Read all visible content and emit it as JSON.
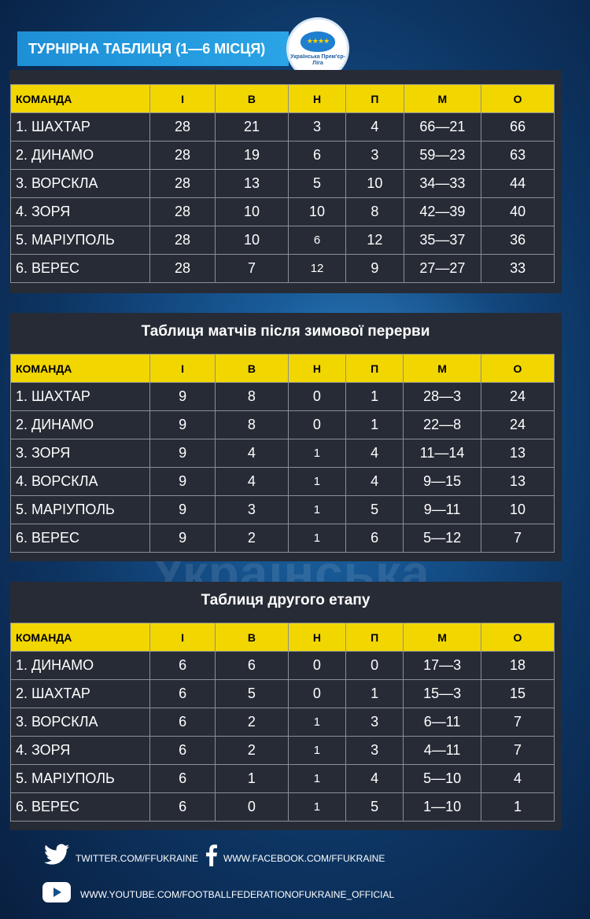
{
  "header": {
    "title": "ТУРНІРНА ТАБЛИЦЯ (1—6 МІСЦЯ)",
    "logo_text": "Українська Прем'єр-Ліга"
  },
  "background": {
    "watermark": "Українська Прем'єр-Ліга"
  },
  "columns": [
    "КОМАНДА",
    "І",
    "В",
    "Н",
    "П",
    "М",
    "О"
  ],
  "tables": [
    {
      "title": "",
      "rows": [
        {
          "team": "1.  ШАХТАР",
          "i": "28",
          "v": "21",
          "n": "3",
          "p": "4",
          "m": "66—21",
          "o": "66"
        },
        {
          "team": "2.  ДИНАМО",
          "i": "28",
          "v": "19",
          "n": "6",
          "p": "3",
          "m": "59—23",
          "o": "63"
        },
        {
          "team": "3.  ВОРСКЛА",
          "i": "28",
          "v": "13",
          "n": "5",
          "p": "10",
          "m": "34—33",
          "o": "44"
        },
        {
          "team": "4.  ЗОРЯ",
          "i": "28",
          "v": "10",
          "n": "10",
          "p": "8",
          "m": "42—39",
          "o": "40"
        },
        {
          "team": "5.  МАРІУПОЛЬ",
          "i": "28",
          "v": "10",
          "n": "6",
          "p": "12",
          "m": "35—37",
          "o": "36"
        },
        {
          "team": "6.  ВЕРЕС",
          "i": "28",
          "v": "7",
          "n": "12",
          "p": "9",
          "m": "27—27",
          "o": "33"
        }
      ]
    },
    {
      "title": "Таблиця матчів після зимової перерви",
      "rows": [
        {
          "team": "1.  ШАХТАР",
          "i": "9",
          "v": "8",
          "n": "0",
          "p": "1",
          "m": "28—3",
          "o": "24"
        },
        {
          "team": "2.  ДИНАМО",
          "i": "9",
          "v": "8",
          "n": "0",
          "p": "1",
          "m": "22—8",
          "o": "24"
        },
        {
          "team": "3.  ЗОРЯ",
          "i": "9",
          "v": "4",
          "n": "1",
          "p": "4",
          "m": "11—14",
          "o": "13"
        },
        {
          "team": "4.  ВОРСКЛА",
          "i": "9",
          "v": "4",
          "n": "1",
          "p": "4",
          "m": "9—15",
          "o": "13"
        },
        {
          "team": "5.  МАРІУПОЛЬ",
          "i": "9",
          "v": "3",
          "n": "1",
          "p": "5",
          "m": "9—11",
          "o": "10"
        },
        {
          "team": "6.  ВЕРЕС",
          "i": "9",
          "v": "2",
          "n": "1",
          "p": "6",
          "m": "5—12",
          "o": "7"
        }
      ]
    },
    {
      "title": "Таблиця другого етапу",
      "rows": [
        {
          "team": "1. ДИНАМО",
          "i": "6",
          "v": "6",
          "n": "0",
          "p": "0",
          "m": "17—3",
          "o": "18"
        },
        {
          "team": "2. ШАХТАР",
          "i": "6",
          "v": "5",
          "n": "0",
          "p": "1",
          "m": "15—3",
          "o": "15"
        },
        {
          "team": "3. ВОРСКЛА",
          "i": "6",
          "v": "2",
          "n": "1",
          "p": "3",
          "m": "6—11",
          "o": "7"
        },
        {
          "team": "4. ЗОРЯ",
          "i": "6",
          "v": "2",
          "n": "1",
          "p": "3",
          "m": "4—11",
          "o": "7"
        },
        {
          "team": "5. МАРІУПОЛЬ",
          "i": "6",
          "v": "1",
          "n": "1",
          "p": "4",
          "m": "5—10",
          "o": "4"
        },
        {
          "team": "6. ВЕРЕС",
          "i": "6",
          "v": "0",
          "n": "1",
          "p": "5",
          "m": "1—10",
          "o": "1"
        }
      ]
    }
  ],
  "footer": {
    "twitter": "TWITTER.COM/FFUKRAINE",
    "facebook": "WWW.FACEBOOK.COM/FFUKRAINE",
    "youtube": "WWW.YOUTUBE.COM/FOOTBALLFEDERATIONOFUKRAINE_OFFICIAL",
    "icons": [
      "twitter-icon",
      "facebook-icon",
      "youtube-icon"
    ]
  },
  "colors": {
    "header_row": "#f2d600",
    "panel": "#262b35",
    "title_bar": "#1e8fd6"
  }
}
